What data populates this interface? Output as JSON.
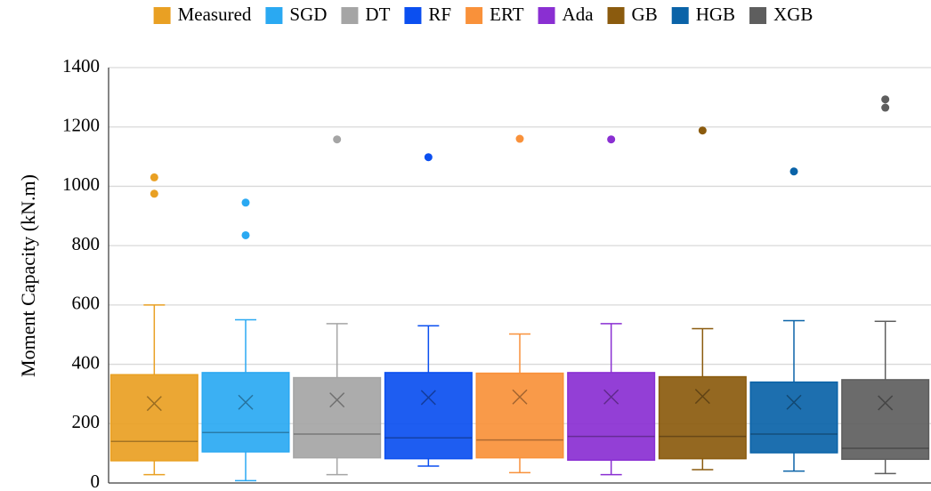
{
  "chart_data": {
    "type": "box",
    "ylabel": "Moment Capacity (kN.m)",
    "ylim": [
      0,
      1400
    ],
    "yticks": [
      0,
      200,
      400,
      600,
      800,
      1000,
      1200,
      1400
    ],
    "grid": true,
    "series": [
      {
        "name": "Measured",
        "color": "#e9a023",
        "min": 28,
        "q1": 75,
        "median": 140,
        "mean": 268,
        "q3": 365,
        "max": 600,
        "outliers": [
          975,
          1030
        ]
      },
      {
        "name": "SGD",
        "color": "#2aa9f2",
        "min": 8,
        "q1": 105,
        "median": 170,
        "mean": 272,
        "q3": 372,
        "max": 550,
        "outliers": [
          835,
          945
        ]
      },
      {
        "name": "DT",
        "color": "#a5a5a5",
        "min": 28,
        "q1": 85,
        "median": 165,
        "mean": 280,
        "q3": 355,
        "max": 537,
        "outliers": [
          1158
        ]
      },
      {
        "name": "RF",
        "color": "#0b4ff0",
        "min": 57,
        "q1": 82,
        "median": 152,
        "mean": 288,
        "q3": 372,
        "max": 530,
        "outliers": [
          1098
        ]
      },
      {
        "name": "ERT",
        "color": "#f9913a",
        "min": 35,
        "q1": 85,
        "median": 145,
        "mean": 290,
        "q3": 370,
        "max": 502,
        "outliers": [
          1160
        ]
      },
      {
        "name": "Ada",
        "color": "#8a2fd2",
        "min": 28,
        "q1": 77,
        "median": 157,
        "mean": 290,
        "q3": 372,
        "max": 537,
        "outliers": [
          1158
        ]
      },
      {
        "name": "GB",
        "color": "#8b5b0e",
        "min": 45,
        "q1": 82,
        "median": 157,
        "mean": 292,
        "q3": 358,
        "max": 520,
        "outliers": [
          1188
        ]
      },
      {
        "name": "HGB",
        "color": "#0a63a8",
        "min": 40,
        "q1": 102,
        "median": 165,
        "mean": 272,
        "q3": 340,
        "max": 547,
        "outliers": [
          1050
        ]
      },
      {
        "name": "XGB",
        "color": "#5e5e5e",
        "min": 32,
        "q1": 80,
        "median": 117,
        "mean": 270,
        "q3": 348,
        "max": 545,
        "outliers": [
          1265,
          1293
        ]
      }
    ]
  }
}
